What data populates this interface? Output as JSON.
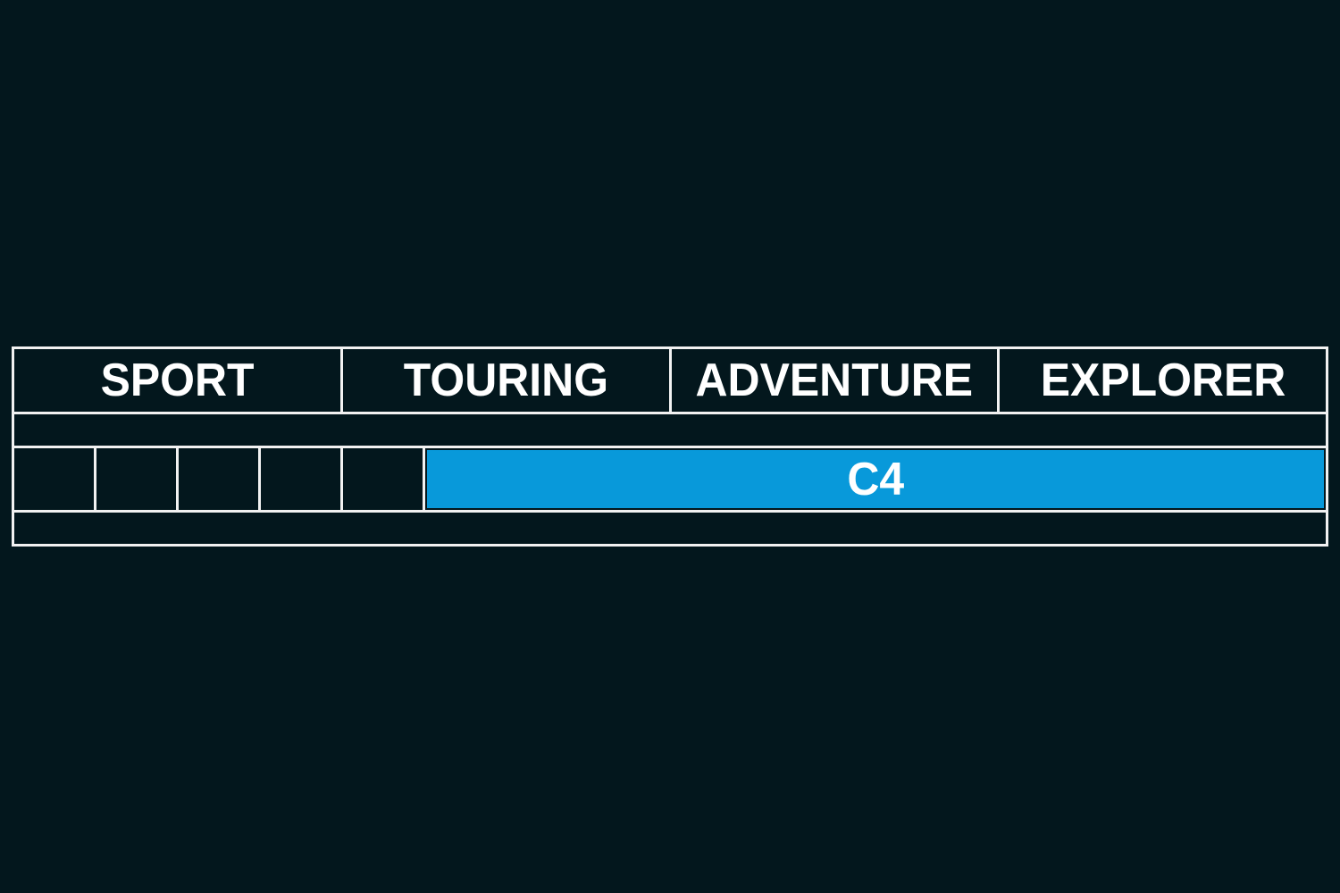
{
  "colors": {
    "background": "#03171d",
    "grid_line": "#f2f2f2",
    "cell_fill": "#03171d",
    "bar_fill": "#0899da",
    "text": "#ffffff"
  },
  "chart_data": {
    "type": "table",
    "title": "",
    "categories": [
      "SPORT",
      "TOURING",
      "ADVENTURE",
      "EXPLORER"
    ],
    "grid_on": true,
    "legend_position": "none",
    "layout": {
      "rows": [
        "category-header",
        "spacer",
        "range-bar",
        "spacer"
      ],
      "columns_per_category": 4,
      "total_columns": 16,
      "empty_leading_cells": 5
    },
    "series": [
      {
        "name": "C4",
        "start_column": 6,
        "end_column": 16,
        "span_categories": [
          "TOURING",
          "ADVENTURE",
          "EXPLORER"
        ],
        "color": "#0899da"
      }
    ]
  }
}
